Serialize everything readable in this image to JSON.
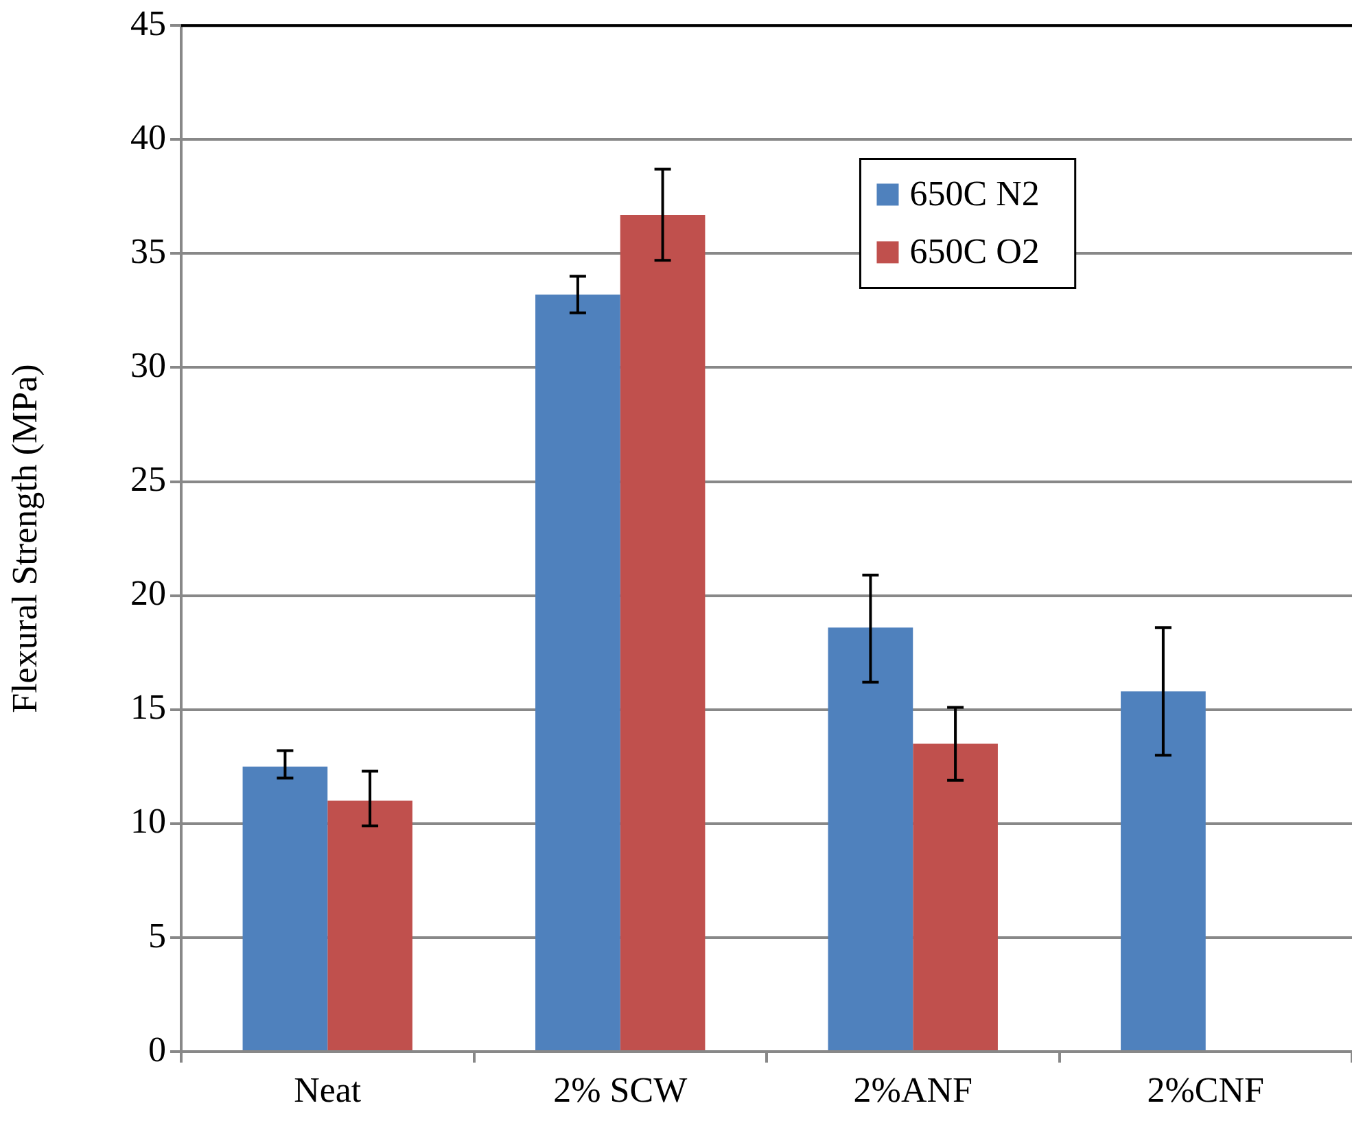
{
  "chart_data": {
    "type": "bar",
    "ylabel": "Flexural Strength (MPa)",
    "categories": [
      "Neat",
      "2% SCW",
      "2%ANF",
      "2%CNF"
    ],
    "series": [
      {
        "name": "650C N2",
        "color": "#4f81bd",
        "values": [
          12.5,
          33.2,
          18.6,
          15.8
        ],
        "errors": [
          [
            12.0,
            13.2
          ],
          [
            32.4,
            34.0
          ],
          [
            16.2,
            20.9
          ],
          [
            13.0,
            18.6
          ]
        ]
      },
      {
        "name": "650C O2",
        "color": "#c0504d",
        "values": [
          11.0,
          36.7,
          13.5,
          null
        ],
        "errors": [
          [
            9.9,
            12.3
          ],
          [
            34.7,
            38.7
          ],
          [
            11.9,
            15.1
          ],
          null
        ]
      }
    ],
    "ylim": [
      0,
      45
    ],
    "yticks": [
      0,
      5,
      10,
      15,
      20,
      25,
      30,
      35,
      40,
      45
    ],
    "grid": "y",
    "legend": "top right"
  }
}
